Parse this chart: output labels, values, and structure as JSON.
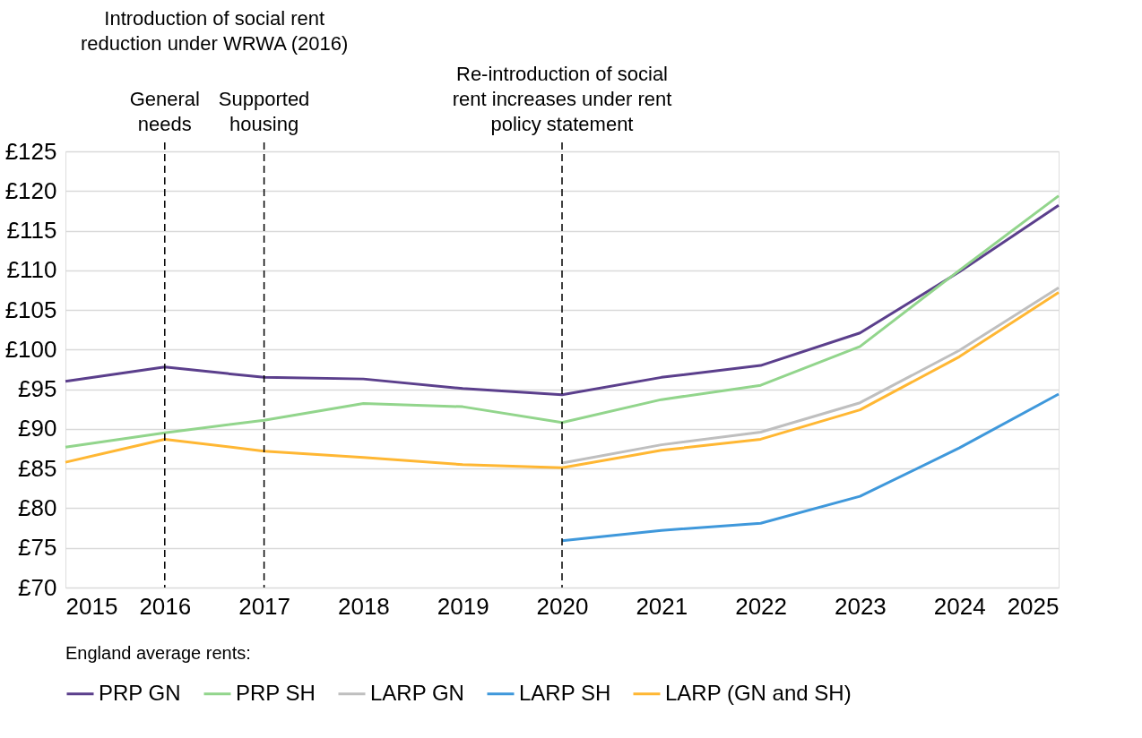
{
  "chart_data": {
    "type": "line",
    "x": [
      2015,
      2016,
      2017,
      2018,
      2019,
      2020,
      2021,
      2022,
      2023,
      2024,
      2025
    ],
    "series": [
      {
        "name": "PRP GN",
        "color": "#5b3f8c",
        "values": [
          96.0,
          97.8,
          96.5,
          96.3,
          95.1,
          94.3,
          96.5,
          98.0,
          102.1,
          109.8,
          118.2
        ]
      },
      {
        "name": "PRP SH",
        "color": "#92d58c",
        "values": [
          87.7,
          89.5,
          91.1,
          93.2,
          92.8,
          90.8,
          93.7,
          95.5,
          100.4,
          110.0,
          119.4
        ]
      },
      {
        "name": "LARP GN",
        "color": "#bfbfbf",
        "values": [
          null,
          null,
          null,
          null,
          null,
          85.7,
          88.0,
          89.6,
          93.3,
          99.9,
          107.8
        ]
      },
      {
        "name": "LARP SH",
        "color": "#3f98db",
        "values": [
          null,
          null,
          null,
          null,
          null,
          75.9,
          77.2,
          78.1,
          81.5,
          87.6,
          94.4
        ]
      },
      {
        "name": "LARP (GN and SH)",
        "color": "#ffb733",
        "values": [
          85.8,
          88.7,
          87.2,
          86.4,
          85.5,
          85.1,
          87.3,
          88.7,
          92.4,
          99.1,
          107.2
        ]
      }
    ],
    "xlim": [
      2015,
      2025
    ],
    "xticks": [
      2015,
      2016,
      2017,
      2018,
      2019,
      2020,
      2021,
      2022,
      2023,
      2024,
      2025
    ],
    "ylim": [
      70,
      125
    ],
    "yticks": [
      {
        "value": 70,
        "label": "£70"
      },
      {
        "value": 75,
        "label": "£75"
      },
      {
        "value": 80,
        "label": "£80"
      },
      {
        "value": 85,
        "label": "£85"
      },
      {
        "value": 90,
        "label": "£90"
      },
      {
        "value": 95,
        "label": "£95"
      },
      {
        "value": 100,
        "label": "£100"
      },
      {
        "value": 105,
        "label": "£105"
      },
      {
        "value": 110,
        "label": "£110"
      },
      {
        "value": 115,
        "label": "£115"
      },
      {
        "value": 120,
        "label": "£120"
      },
      {
        "value": 125,
        "label": "£125"
      }
    ],
    "ref_lines": [
      {
        "axis": "x",
        "value": 2016,
        "label": "General needs",
        "color": "#000000",
        "line_style": "dashed"
      },
      {
        "axis": "x",
        "value": 2017,
        "label": "Supported housing",
        "color": "#000000",
        "line_style": "dashed"
      },
      {
        "axis": "x",
        "value": 2020,
        "label": "Re-introduction of social rent increases under rent policy statement",
        "color": "#000000",
        "line_style": "dashed"
      }
    ],
    "annotations": [
      "Introduction of social rent reduction under WRWA (2016)"
    ],
    "legend_title": "England average rents:",
    "legend": "bottom",
    "grid": "y",
    "marker": "none",
    "line_style": "solid"
  }
}
